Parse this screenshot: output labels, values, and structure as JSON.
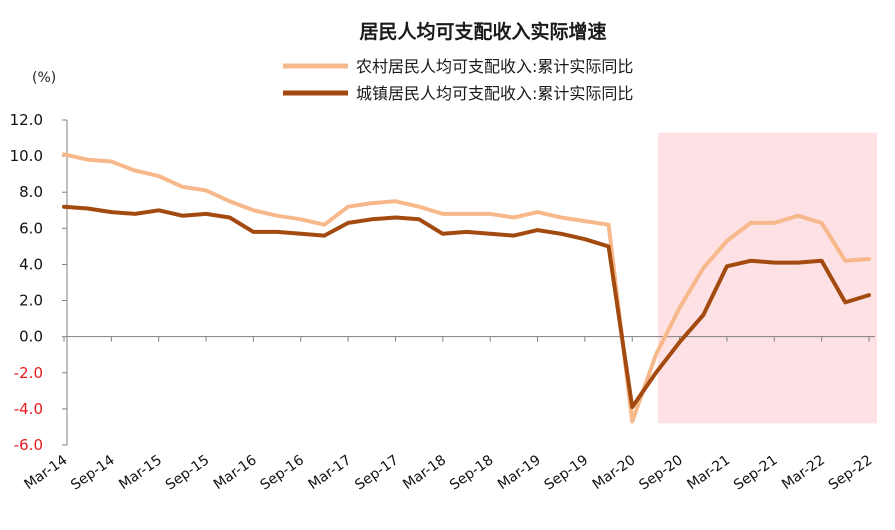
{
  "chart_data": {
    "type": "line",
    "title": "居民人均可支配收入实际增速",
    "unit_label": "(%)",
    "ylim": [
      -6,
      12
    ],
    "yticks": [
      12.0,
      10.0,
      8.0,
      6.0,
      4.0,
      2.0,
      0.0,
      -2.0,
      -4.0,
      -6.0
    ],
    "ytick_labels": [
      "12.0",
      "10.0",
      "8.0",
      "6.0",
      "4.0",
      "2.0",
      "0.0",
      "-2.0",
      "-4.0",
      "-6.0"
    ],
    "negative_color": "#e8191e",
    "x": [
      "Mar-14",
      "Jun-14",
      "Sep-14",
      "Dec-14",
      "Mar-15",
      "Jun-15",
      "Sep-15",
      "Dec-15",
      "Mar-16",
      "Jun-16",
      "Sep-16",
      "Dec-16",
      "Mar-17",
      "Jun-17",
      "Sep-17",
      "Dec-17",
      "Mar-18",
      "Jun-18",
      "Sep-18",
      "Dec-18",
      "Mar-19",
      "Jun-19",
      "Sep-19",
      "Dec-19",
      "Mar-20",
      "Jun-20",
      "Sep-20",
      "Dec-20",
      "Mar-21",
      "Jun-21",
      "Sep-21",
      "Dec-21",
      "Mar-22",
      "Jun-22",
      "Sep-22"
    ],
    "xtick_labels": [
      "Mar-14",
      "Sep-14",
      "Mar-15",
      "Sep-15",
      "Mar-16",
      "Sep-16",
      "Mar-17",
      "Sep-17",
      "Mar-18",
      "Sep-18",
      "Mar-19",
      "Sep-19",
      "Mar-20",
      "Sep-20",
      "Mar-21",
      "Sep-21",
      "Mar-22",
      "Sep-22"
    ],
    "series": [
      {
        "name": "农村居民人均可支配收入:累计实际同比",
        "color": "#f7b98b",
        "values": [
          10.1,
          9.8,
          9.7,
          9.2,
          8.9,
          8.3,
          8.1,
          7.5,
          7.0,
          6.7,
          6.5,
          6.2,
          7.2,
          7.4,
          7.5,
          7.2,
          6.8,
          6.8,
          6.8,
          6.6,
          6.9,
          6.6,
          6.4,
          6.2,
          -4.7,
          -1.0,
          1.6,
          3.8,
          5.3,
          6.3,
          6.3,
          6.7,
          6.3,
          4.2,
          4.3
        ]
      },
      {
        "name": "城镇居民人均可支配收入:累计实际同比",
        "color": "#a34a10",
        "values": [
          7.2,
          7.1,
          6.9,
          6.8,
          7.0,
          6.7,
          6.8,
          6.6,
          5.8,
          5.8,
          5.7,
          5.6,
          6.3,
          6.5,
          6.6,
          6.5,
          5.7,
          5.8,
          5.7,
          5.6,
          5.9,
          5.7,
          5.4,
          5.0,
          -3.9,
          -2.0,
          -0.3,
          1.2,
          3.9,
          4.2,
          4.1,
          4.1,
          4.2,
          1.9,
          2.3
        ]
      }
    ],
    "highlight": {
      "from": "Jun-20",
      "to": "Sep-22",
      "ymin": -4.8,
      "ymax": 11.3,
      "color": "#fde1e4"
    }
  }
}
